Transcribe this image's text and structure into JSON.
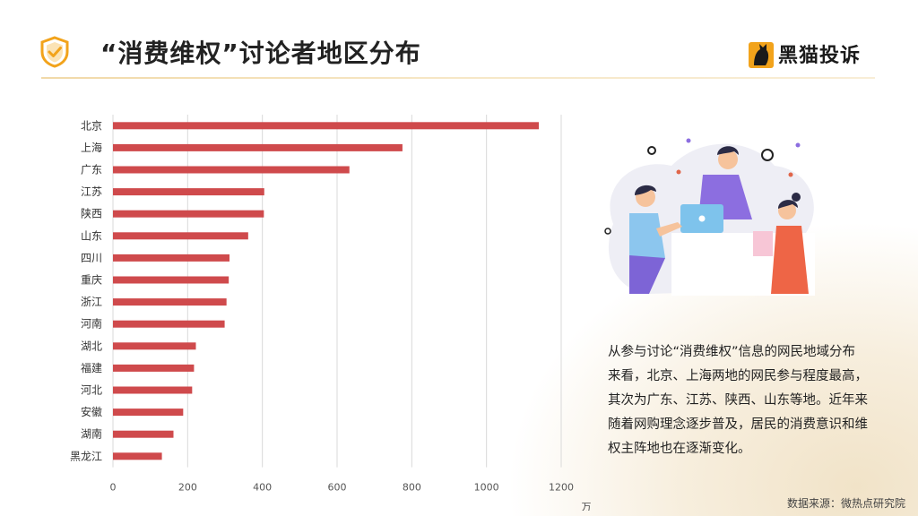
{
  "header": {
    "title": "“消费维权”讨论者地区分布",
    "logo_text": "黑猫投诉"
  },
  "description": "从参与讨论“消费维权”信息的网民地域分布来看，北京、上海两地的网民参与程度最高，其次为广东、江苏、陕西、山东等地。近年来随着网购理念逐步普及，居民的消费意识和维权主阵地也在逐渐变化。",
  "source": "数据来源：微热点研究院",
  "colors": {
    "bar": "#cf4a4c",
    "accent": "#f2a31b"
  },
  "chart_data": {
    "type": "bar",
    "orientation": "horizontal",
    "categories": [
      "北京",
      "上海",
      "广东",
      "江苏",
      "陕西",
      "山东",
      "四川",
      "重庆",
      "浙江",
      "河南",
      "湖北",
      "福建",
      "河北",
      "安徽",
      "湖南",
      "黑龙江"
    ],
    "values": [
      1140,
      775,
      633,
      405,
      404,
      362,
      312,
      310,
      304,
      299,
      222,
      217,
      212,
      188,
      162,
      131
    ],
    "xlim": [
      0,
      1200
    ],
    "xticks": [
      0,
      200,
      400,
      600,
      800,
      1000,
      1200
    ],
    "unit": "万",
    "grid": "vertical"
  }
}
